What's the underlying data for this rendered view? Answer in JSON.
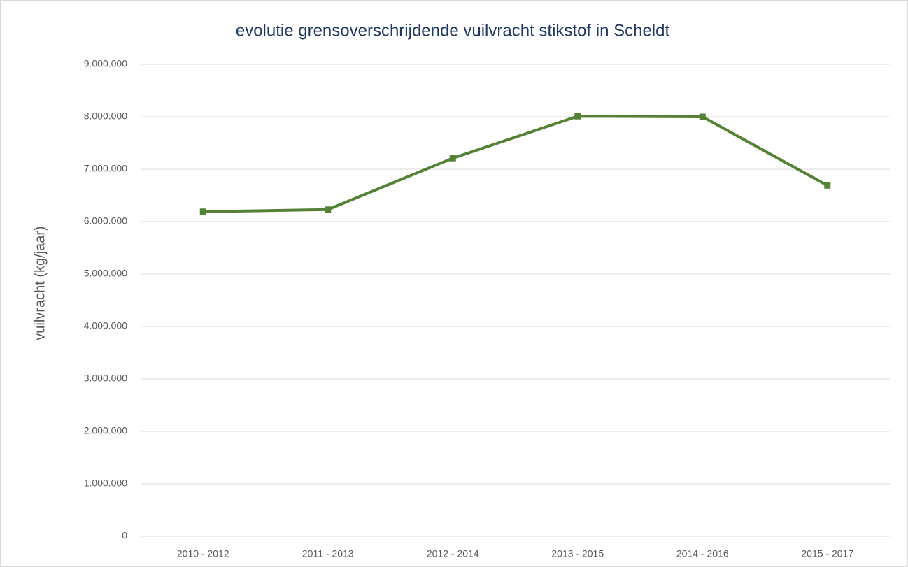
{
  "chart_data": {
    "type": "line",
    "title": "evolutie grensoverschrijdende  vuilvracht stikstof  in  Scheldt",
    "y_label": "vuilvracht (kg/jaar)",
    "categories": [
      "2010 - 2012",
      "2011 - 2013",
      "2012 - 2014",
      "2013 - 2015",
      "2014 - 2016",
      "2015 - 2017"
    ],
    "series": [
      {
        "color": "#548235",
        "values": [
          6190000,
          6230000,
          7210000,
          8010000,
          8000000,
          6690000
        ]
      }
    ],
    "ylim": [
      0,
      9000000
    ],
    "yticks": [
      0,
      {
        "value": 1000000,
        "label": "1.000.000"
      },
      {
        "value": 2000000,
        "label": "2.000.000"
      },
      {
        "value": 3000000,
        "label": "3.000.000"
      },
      {
        "value": 4000000,
        "label": "4.000.000"
      },
      {
        "value": 5000000,
        "label": "5.000.000"
      },
      {
        "value": 6000000,
        "label": "6.000.000"
      },
      {
        "value": 7000000,
        "label": "7.000.000"
      },
      {
        "value": 8000000,
        "label": "8.000.000"
      },
      {
        "value": 9000000,
        "label": "9.000.000"
      }
    ],
    "grid": true
  }
}
